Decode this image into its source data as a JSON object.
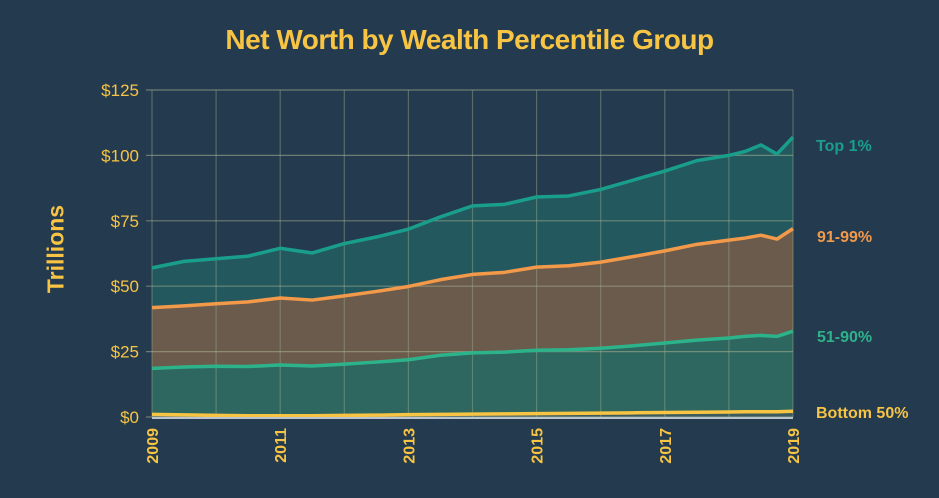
{
  "title": "Net Worth by Wealth Percentile Group",
  "colors": {
    "background": "#243a4f",
    "text": "#f7c443",
    "grid": "#9aa98a",
    "top1": "#1a9e8c",
    "p91_99": "#f2994a",
    "p51_90": "#2db38a",
    "bottom50": "#f7c443"
  },
  "chart_data": {
    "type": "area",
    "stacked": true,
    "title": "Net Worth by Wealth Percentile Group",
    "xlabel": "",
    "ylabel": "Trillions",
    "x": [
      2009,
      2009.5,
      2010,
      2010.5,
      2011,
      2011.5,
      2012,
      2012.5,
      2013,
      2013.5,
      2014,
      2014.5,
      2015,
      2015.5,
      2016,
      2016.5,
      2017,
      2017.5,
      2018,
      2018.25,
      2018.5,
      2018.75,
      2019
    ],
    "x_ticks": [
      "2009",
      "2011",
      "2013",
      "2015",
      "2017",
      "2019"
    ],
    "y_ticks": [
      "$0",
      "$25",
      "$50",
      "$75",
      "$100",
      "$125"
    ],
    "ylim": [
      0,
      125
    ],
    "grid": true,
    "legend_position": "right (inline labels)",
    "series": [
      {
        "name": "Bottom 50%",
        "color": "#f7c443",
        "values": [
          1.0,
          0.8,
          0.6,
          0.5,
          0.5,
          0.5,
          0.6,
          0.7,
          0.9,
          1.0,
          1.1,
          1.2,
          1.3,
          1.4,
          1.5,
          1.6,
          1.7,
          1.8,
          1.9,
          2.0,
          2.0,
          2.0,
          2.2
        ]
      },
      {
        "name": "51-90%",
        "color": "#2db38a",
        "values": [
          17.6,
          18.3,
          18.8,
          18.8,
          19.4,
          19.0,
          19.6,
          20.3,
          21.0,
          22.6,
          23.4,
          23.6,
          24.2,
          24.3,
          24.8,
          25.6,
          26.6,
          27.6,
          28.3,
          28.8,
          29.2,
          28.8,
          30.6
        ]
      },
      {
        "name": "91-99%",
        "color": "#f2994a",
        "values": [
          23.2,
          23.4,
          23.9,
          24.7,
          25.6,
          25.2,
          26.1,
          27.0,
          28.0,
          28.9,
          30.0,
          30.5,
          31.8,
          32.1,
          32.9,
          34.1,
          35.2,
          36.6,
          37.4,
          37.6,
          38.3,
          37.2,
          39.2
        ]
      },
      {
        "name": "Top 1%",
        "color": "#1a9e8c",
        "values": [
          15.2,
          17.0,
          17.2,
          17.5,
          19.0,
          18.0,
          20.0,
          20.8,
          21.9,
          24.0,
          26.2,
          26.0,
          26.8,
          26.7,
          27.8,
          29.2,
          30.5,
          32.0,
          32.4,
          33.1,
          34.5,
          32.5,
          35.0
        ]
      }
    ]
  },
  "axes": {
    "y_label": "Trillions",
    "y_ticks": [
      "$0",
      "$25",
      "$50",
      "$75",
      "$100",
      "$125"
    ],
    "x_ticks": [
      "2009",
      "2011",
      "2013",
      "2015",
      "2017",
      "2019"
    ]
  },
  "labels": {
    "top1": "Top 1%",
    "p91_99": "91-99%",
    "p51_90": "51-90%",
    "bottom50": "Bottom 50%"
  }
}
